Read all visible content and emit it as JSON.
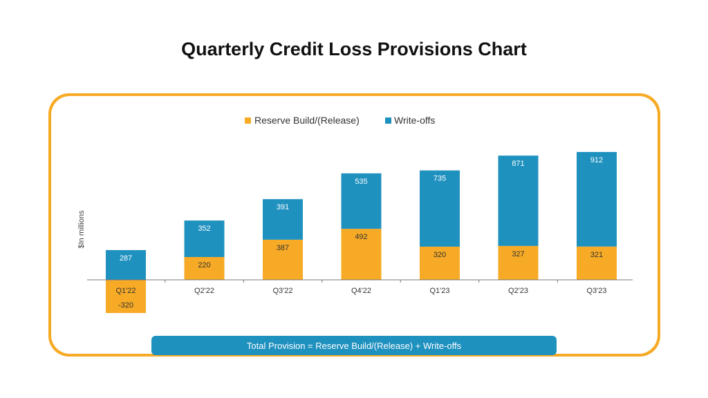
{
  "title": "Quarterly Credit Loss Provisions Chart",
  "footer_note": "Total Provision = Reserve Build/(Release) + Write-offs",
  "colors": {
    "reserve": "#F7AA25",
    "writeoffs": "#1F91BF",
    "frame": "#F7AA25"
  },
  "chart_data": {
    "type": "bar",
    "stacked": true,
    "categories": [
      "Q1'22",
      "Q2'22",
      "Q3'22",
      "Q4'22",
      "Q1'23",
      "Q2'23",
      "Q3'23"
    ],
    "series": [
      {
        "name": "Reserve Build/(Release)",
        "values": [
          -320,
          220,
          387,
          492,
          320,
          327,
          321
        ]
      },
      {
        "name": "Write-offs",
        "values": [
          287,
          352,
          391,
          535,
          735,
          871,
          912
        ]
      }
    ],
    "ylabel": "$In millions",
    "legend_position": "top-center",
    "grid": false,
    "data_labels": true
  }
}
